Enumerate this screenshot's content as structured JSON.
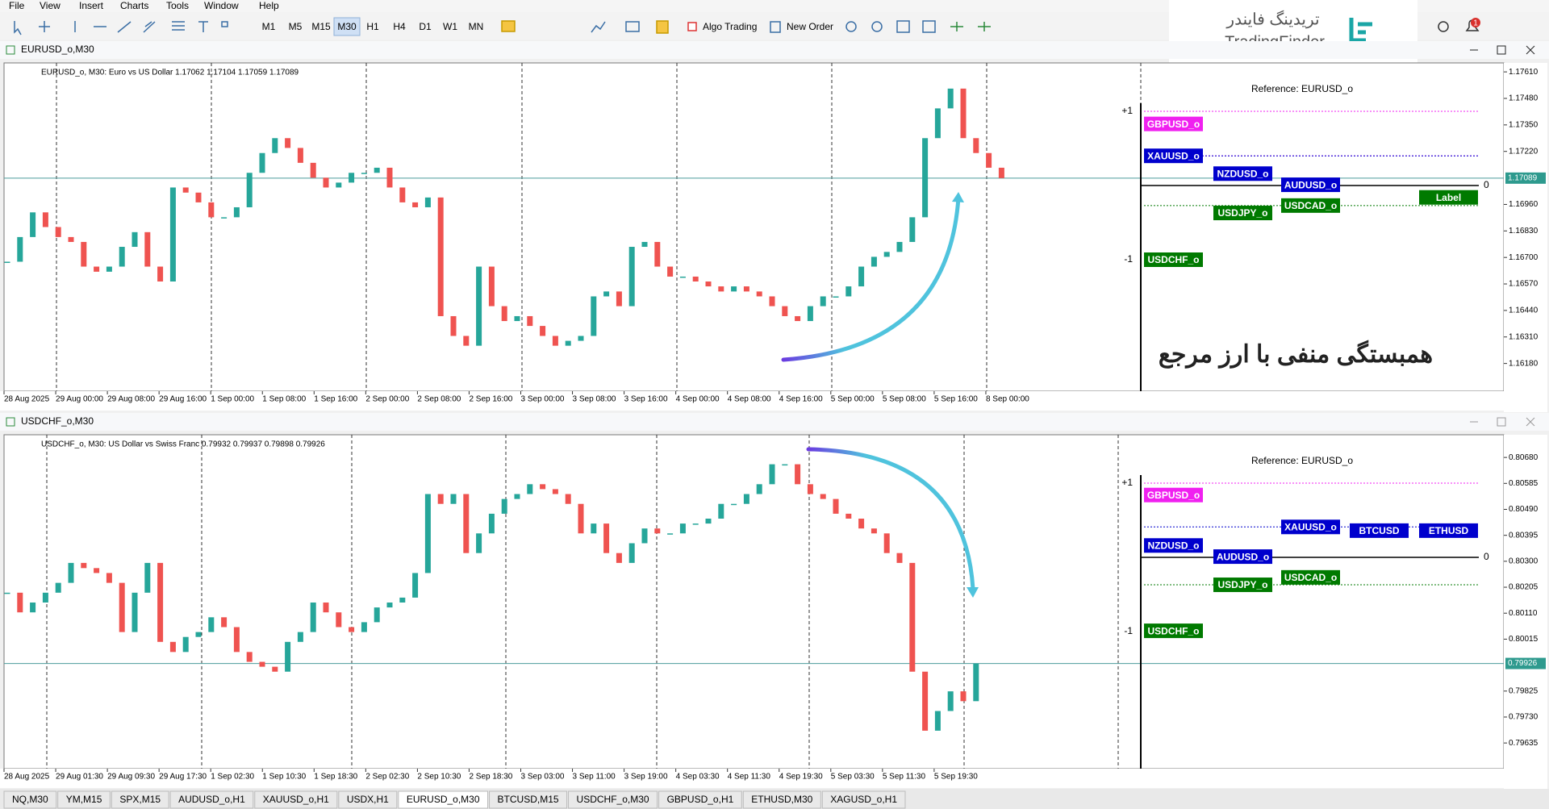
{
  "menu": [
    "File",
    "View",
    "Insert",
    "Charts",
    "Tools",
    "Window",
    "Help"
  ],
  "toolbar": {
    "timeframes": [
      {
        "label": "M1",
        "active": false
      },
      {
        "label": "M5",
        "active": false
      },
      {
        "label": "M15",
        "active": false
      },
      {
        "label": "M30",
        "active": true
      },
      {
        "label": "H1",
        "active": false
      },
      {
        "label": "H4",
        "active": false
      },
      {
        "label": "D1",
        "active": false
      },
      {
        "label": "W1",
        "active": false
      },
      {
        "label": "MN",
        "active": false
      }
    ],
    "algo_trading": "Algo Trading",
    "new_order": "New Order",
    "notification_count": 1
  },
  "logo": {
    "persian": "تریدینگ فایندر",
    "latin": "TradingFinder"
  },
  "chart_data": [
    {
      "type": "candlestick",
      "window_title": "EURUSD_o,M30",
      "header": "EURUSD_o, M30: Euro vs US Dollar 1.17062 1.17104 1.17059 1.17089",
      "time_labels": [
        "28 Aug 2025",
        "29 Aug 00:00",
        "29 Aug 08:00",
        "29 Aug 16:00",
        "1 Sep 00:00",
        "1 Sep 08:00",
        "1 Sep 16:00",
        "2 Sep 00:00",
        "2 Sep 08:00",
        "2 Sep 16:00",
        "3 Sep 00:00",
        "3 Sep 08:00",
        "3 Sep 16:00",
        "4 Sep 00:00",
        "4 Sep 08:00",
        "4 Sep 16:00",
        "5 Sep 00:00",
        "5 Sep 08:00",
        "5 Sep 16:00",
        "8 Sep 00:00"
      ],
      "values": [
        1.16679,
        1.168,
        1.16921,
        1.16849,
        1.168,
        1.16776,
        1.16655,
        1.1663,
        1.16655,
        1.16752,
        1.16824,
        1.16655,
        1.16582,
        1.17043,
        1.17018,
        1.1697,
        1.16897,
        1.16897,
        1.16946,
        1.17115,
        1.17212,
        1.17285,
        1.17237,
        1.17164,
        1.17091,
        1.17043,
        1.17067,
        1.17115,
        1.17115,
        1.1714,
        1.17043,
        1.1697,
        1.16946,
        1.16994,
        1.16412,
        1.16315,
        1.16267,
        1.16655,
        1.16461,
        1.16388,
        1.16412,
        1.16364,
        1.16315,
        1.16267,
        1.16291,
        1.16315,
        1.16509,
        1.16533,
        1.16461,
        1.16752,
        1.16776,
        1.16655,
        1.16606,
        1.16606,
        1.16582,
        1.16558,
        1.16533,
        1.16558,
        1.16533,
        1.16509,
        1.16461,
        1.16412,
        1.16388,
        1.16461,
        1.16509,
        1.16509,
        1.16558,
        1.16655,
        1.16703,
        1.16727,
        1.16776,
        1.16897,
        1.17285,
        1.17431,
        1.17528,
        1.17285,
        1.17212,
        1.1714,
        1.17089
      ],
      "ylim": [
        1.16044,
        1.17654
      ],
      "yticks": [
        {
          "value": 1.1761,
          "label": "1.17610"
        },
        {
          "value": 1.1748,
          "label": "1.17480"
        },
        {
          "value": 1.1735,
          "label": "1.17350"
        },
        {
          "value": 1.1722,
          "label": "1.17220"
        },
        {
          "value": 1.1696,
          "label": "1.16960"
        },
        {
          "value": 1.1683,
          "label": "1.16830"
        },
        {
          "value": 1.167,
          "label": "1.16700"
        },
        {
          "value": 1.1657,
          "label": "1.16570"
        },
        {
          "value": 1.1644,
          "label": "1.16440"
        },
        {
          "value": 1.1631,
          "label": "1.16310"
        },
        {
          "value": 1.1618,
          "label": "1.16180"
        }
      ],
      "current_price": 1.17089,
      "correlation": {
        "reference": "Reference: EURUSD_o",
        "ticks": [
          {
            "value": 1,
            "label": "+1"
          },
          0,
          -1
        ],
        "items": [
          {
            "name": "GBPUSD_o",
            "color": "#f020f0",
            "value": 0.83
          },
          {
            "name": "XAUUSD_o",
            "color": "#0000cd",
            "value": 0.4
          },
          {
            "name": "NZDUSD_o",
            "color": "#0000cd",
            "value": 0.16
          },
          {
            "name": "AUDUSD_o",
            "color": "#0000cd",
            "value": 0.01
          },
          {
            "name": "USDCAD_o",
            "color": "#007a00",
            "value": -0.27
          },
          {
            "name": "USDJPY_o",
            "color": "#007a00",
            "value": -0.37
          },
          {
            "name": "Label",
            "color": "#007a00",
            "value": -0.16
          },
          {
            "name": "USDCHF_o",
            "color": "#007a00",
            "value": -1
          }
        ]
      },
      "annotation": "همبستگی منفی با ارز مرجع"
    },
    {
      "type": "candlestick",
      "window_title": "USDCHF_o,M30",
      "header": "USDCHF_o, M30: US Dollar vs Swiss Franc 0.79932 0.79937 0.79898 0.79926",
      "time_labels": [
        "28 Aug 2025",
        "29 Aug 01:30",
        "29 Aug 09:30",
        "29 Aug 17:30",
        "1 Sep 02:30",
        "1 Sep 10:30",
        "1 Sep 18:30",
        "2 Sep 02:30",
        "2 Sep 10:30",
        "2 Sep 18:30",
        "3 Sep 03:00",
        "3 Sep 11:00",
        "3 Sep 19:00",
        "4 Sep 03:30",
        "4 Sep 11:30",
        "4 Sep 19:30",
        "5 Sep 03:30",
        "5 Sep 11:30",
        "5 Sep 19:30"
      ],
      "values": [
        0.80185,
        0.80113,
        0.80149,
        0.80185,
        0.80221,
        0.80294,
        0.80275,
        0.80257,
        0.80221,
        0.80041,
        0.80185,
        0.80294,
        0.80005,
        0.79968,
        0.80023,
        0.80041,
        0.80095,
        0.80059,
        0.79968,
        0.79932,
        0.79914,
        0.79896,
        0.80005,
        0.80041,
        0.80149,
        0.80113,
        0.80059,
        0.80041,
        0.80077,
        0.80131,
        0.80149,
        0.80167,
        0.80257,
        0.80546,
        0.8051,
        0.80546,
        0.8033,
        0.80402,
        0.80474,
        0.80528,
        0.80546,
        0.80582,
        0.80564,
        0.80546,
        0.8051,
        0.80402,
        0.80438,
        0.8033,
        0.80294,
        0.80366,
        0.8042,
        0.80402,
        0.80402,
        0.80438,
        0.80438,
        0.80456,
        0.8051,
        0.8051,
        0.80546,
        0.80582,
        0.80655,
        0.80655,
        0.80582,
        0.80546,
        0.80528,
        0.80474,
        0.80456,
        0.8042,
        0.80402,
        0.8033,
        0.80294,
        0.79896,
        0.7968,
        0.79752,
        0.79824,
        0.79788,
        0.79926
      ],
      "ylim": [
        0.79541,
        0.80763
      ],
      "yticks": [
        {
          "value": 0.8068,
          "label": "0.80680"
        },
        0.80585,
        {
          "value": 0.8049,
          "label": "0.80490"
        },
        0.80395,
        {
          "value": 0.803,
          "label": "0.80300"
        },
        0.80205,
        {
          "value": 0.8011,
          "label": "0.80110"
        },
        0.80015,
        0.79825,
        {
          "value": 0.7973,
          "label": "0.79730"
        },
        0.79635
      ],
      "current_price": 0.79926,
      "correlation": {
        "reference": "Reference: EURUSD_o",
        "ticks": [
          {
            "value": 1,
            "label": "+1"
          },
          0,
          -1
        ],
        "items": [
          {
            "name": "GBPUSD_o",
            "color": "#f020f0",
            "value": 0.84
          },
          {
            "name": "XAUUSD_o",
            "color": "#0000cd",
            "value": 0.41
          },
          {
            "name": "BTCUSD",
            "color": "#0000cd",
            "value": 0.36
          },
          {
            "name": "ETHUSD",
            "color": "#0000cd",
            "value": 0.36
          },
          {
            "name": "NZDUSD_o",
            "color": "#0000cd",
            "value": 0.16
          },
          {
            "name": "AUDUSD_o",
            "color": "#0000cd",
            "value": 0.01
          },
          {
            "name": "USDCAD_o",
            "color": "#007a00",
            "value": -0.27
          },
          {
            "name": "USDJPY_o",
            "color": "#007a00",
            "value": -0.37
          },
          {
            "name": "USDCHF_o",
            "color": "#007a00",
            "value": -0.99
          }
        ]
      }
    }
  ],
  "tabs": [
    {
      "label": "NQ,M30",
      "active": false
    },
    {
      "label": "YM,M15",
      "active": false
    },
    {
      "label": "SPX,M15",
      "active": false
    },
    {
      "label": "AUDUSD_o,H1",
      "active": false
    },
    {
      "label": "XAUUSD_o,H1",
      "active": false
    },
    {
      "label": "USDX,H1",
      "active": false
    },
    {
      "label": "EURUSD_o,M30",
      "active": true
    },
    {
      "label": "BTCUSD,M15",
      "active": false
    },
    {
      "label": "USDCHF_o,M30",
      "active": false
    },
    {
      "label": "GBPUSD_o,H1",
      "active": false
    },
    {
      "label": "ETHUSD,M30",
      "active": false
    },
    {
      "label": "XAGUSD_o,H1",
      "active": false
    }
  ]
}
